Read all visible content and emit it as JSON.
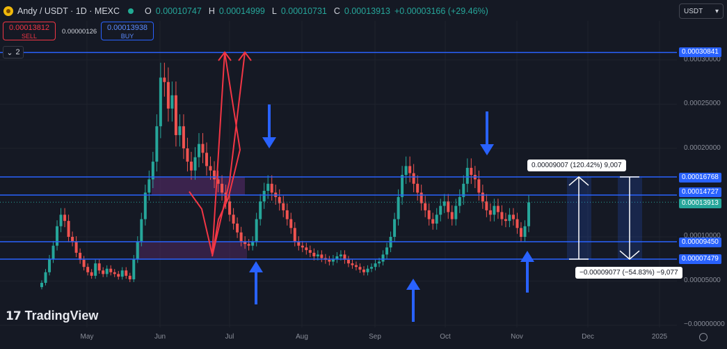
{
  "header": {
    "title": "Andy / USDT · 1D · MEXC",
    "ohlc": [
      {
        "key": "O",
        "value": "0.00010747"
      },
      {
        "key": "H",
        "value": "0.00014999"
      },
      {
        "key": "L",
        "value": "0.00010731"
      },
      {
        "key": "C",
        "value": "0.00013913"
      }
    ],
    "change": "+0.00003166 (+29.46%)",
    "icon": "coin-icon"
  },
  "trade": {
    "sell_price": "0.00013812",
    "sell_label": "SELL",
    "spread": "0.00000126",
    "buy_price": "0.00013938",
    "buy_label": "BUY"
  },
  "indicators_toggle": "2",
  "currency": "USDT",
  "colors": {
    "background": "#151924",
    "up": "#26a69a",
    "down": "#ef5350",
    "level": "#2962ff",
    "red_arrow": "#f23645",
    "blue_arrow": "#2962ff",
    "zone": "#5b2c6f"
  },
  "brand": "TradingView",
  "measure": {
    "up_label": "0.00009007 (120.42%) 9,007",
    "down_label": "−0.00009077 (−54.83%) −9,077"
  },
  "chart_data": {
    "type": "candlestick",
    "y_axis_ticks": [
      "0.00030000",
      "0.00025000",
      "0.00020000",
      "0.00010000",
      "0.00005000",
      "−0.00000000"
    ],
    "x_axis_ticks": [
      "May",
      "Jun",
      "Jul",
      "Aug",
      "Sep",
      "Oct",
      "Nov",
      "Dec",
      "2025"
    ],
    "ylim": [
      0,
      0.00031
    ],
    "horizontal_levels": [
      "0.00030841",
      "0.00016768",
      "0.00014727",
      "0.00009450",
      "0.00007479"
    ],
    "current_price": "0.00013913",
    "close_series": [
      4.8e-05,
      6e-05,
      7.5e-05,
      9e-05,
      0.000112,
      0.000125,
      0.000118,
      0.0001,
      9.5e-05,
      8.2e-05,
      7.4e-05,
      6.6e-05,
      6e-05,
      5.6e-05,
      7e-05,
      6.2e-05,
      5.8e-05,
      6.4e-05,
      6e-05,
      5.8e-05,
      5.5e-05,
      6.2e-05,
      5.6e-05,
      5.2e-05,
      7.5e-05,
      9.5e-05,
      0.00012,
      0.00015,
      0.000165,
      0.000185,
      0.000225,
      0.00028,
      0.000275,
      0.000245,
      0.00026,
      0.000215,
      0.000225,
      0.0002,
      0.000185,
      0.000175,
      0.00019,
      0.000205,
      0.000195,
      0.00018,
      0.000175,
      0.000165,
      0.00016,
      0.00015,
      0.00014,
      0.000125,
      0.000115,
      0.000105,
      9.5e-05,
      9.2e-05,
      9e-05,
      9.5e-05,
      0.00012,
      0.00014,
      0.000152,
      0.00016,
      0.00015,
      0.000145,
      0.000138,
      0.00013,
      0.00012,
      0.00011,
      9.5e-05,
      9e-05,
      8.8e-05,
      8.5e-05,
      8.2e-05,
      7.8e-05,
      8e-05,
      7.6e-05,
      7.4e-05,
      7.2e-05,
      7.5e-05,
      7.8e-05,
      8e-05,
      7.4e-05,
      7e-05,
      6.8e-05,
      6.6e-05,
      6.3e-05,
      6e-05,
      6.4e-05,
      6.6e-05,
      7e-05,
      7.2e-05,
      8e-05,
      8.8e-05,
      0.0001,
      0.00012,
      0.000145,
      0.00017,
      0.00018,
      0.000172,
      0.00016,
      0.00015,
      0.000138,
      0.00013,
      0.00012,
      0.000115,
      0.000125,
      0.000135,
      0.00014,
      0.000128,
      0.00012,
      0.000135,
      0.000145,
      0.00016,
      0.000178,
      0.00017,
      0.000165,
      0.00015,
      0.00014,
      0.00013,
      0.000125,
      0.000135,
      0.000128,
      0.00012,
      0.000118,
      0.000125,
      0.00012,
      0.00011,
      0.0001,
      0.000112,
      0.000139
    ]
  }
}
